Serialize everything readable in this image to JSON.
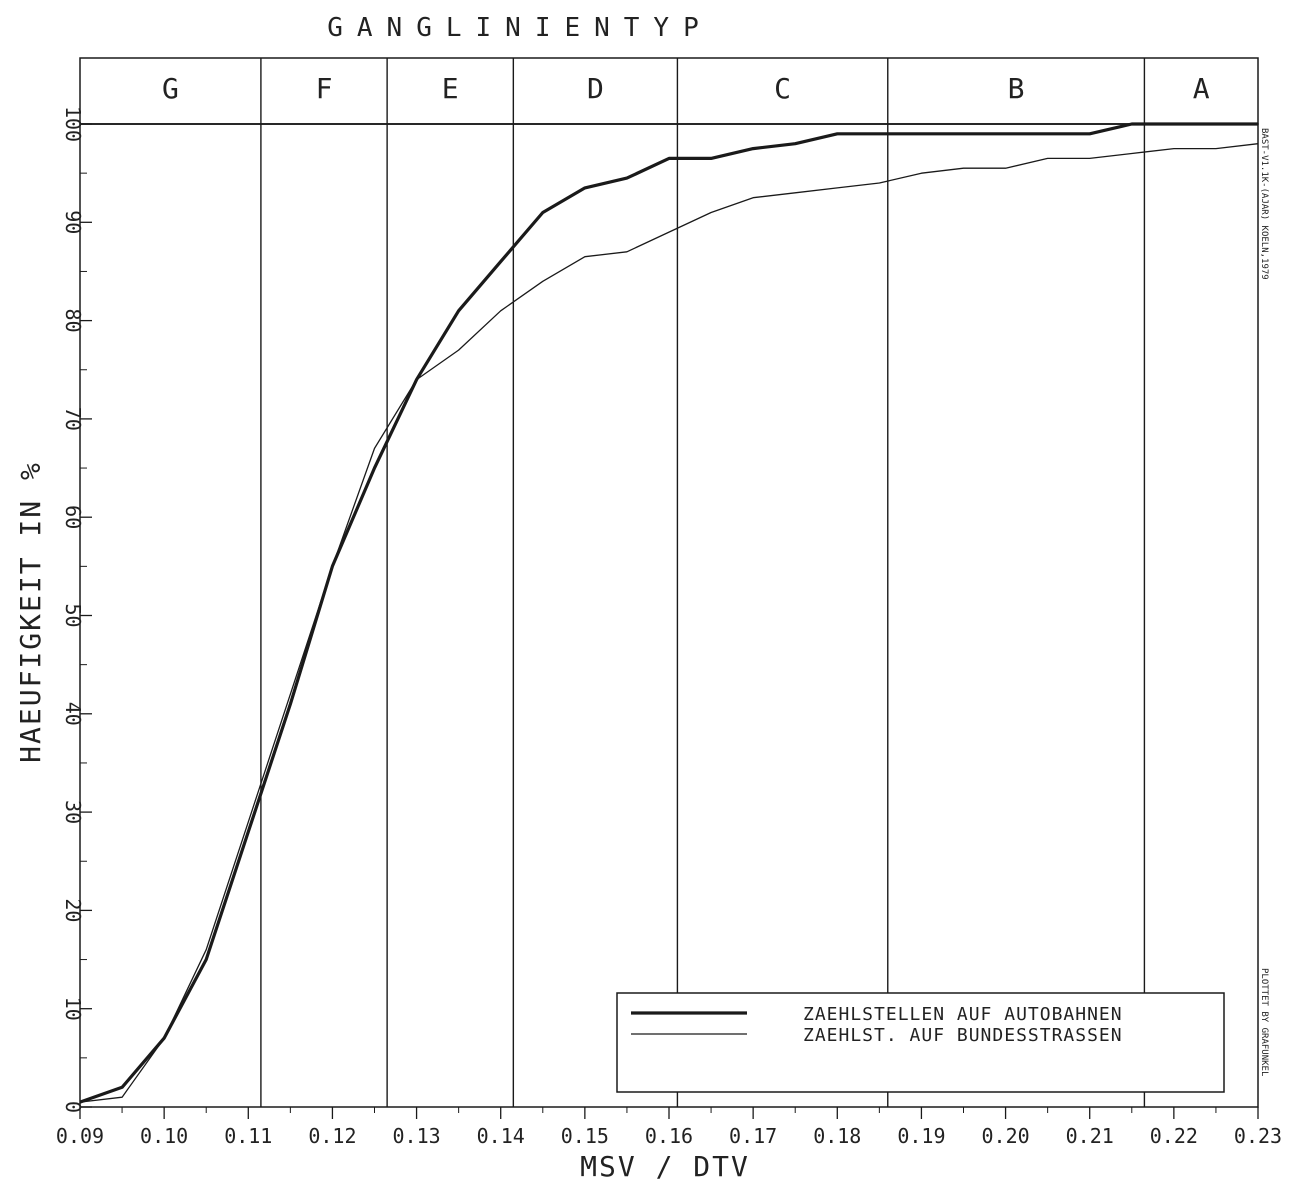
{
  "chart_data": {
    "type": "line",
    "title": "GANGLINIENTYP",
    "xlabel": "MSV / DTV",
    "ylabel": "HAEUFIGKEIT IN %",
    "xlim": [
      0.09,
      0.23
    ],
    "ylim": [
      0,
      100
    ],
    "x_tick_labels": [
      "0.09",
      "0.10",
      "0.11",
      "0.12",
      "0.13",
      "0.14",
      "0.15",
      "0.16",
      "0.17",
      "0.18",
      "0.19",
      "0.20",
      "0.21",
      "0.22",
      "0.23"
    ],
    "y_tick_labels": [
      "0",
      "10",
      "20",
      "30",
      "40",
      "50",
      "60",
      "70",
      "80",
      "90",
      "100"
    ],
    "y_ticks": [
      0,
      10,
      20,
      30,
      40,
      50,
      60,
      70,
      80,
      90,
      100
    ],
    "bands": [
      {
        "label": "G",
        "from": 0.09,
        "to": 0.1115
      },
      {
        "label": "F",
        "from": 0.1115,
        "to": 0.1265
      },
      {
        "label": "E",
        "from": 0.1265,
        "to": 0.1415
      },
      {
        "label": "D",
        "from": 0.1415,
        "to": 0.161
      },
      {
        "label": "C",
        "from": 0.161,
        "to": 0.186
      },
      {
        "label": "B",
        "from": 0.186,
        "to": 0.2165
      },
      {
        "label": "A",
        "from": 0.2165,
        "to": 0.23
      }
    ],
    "series": [
      {
        "name": "ZAEHLSTELLEN AUF AUTOBAHNEN",
        "style": "thick",
        "x": [
          0.09,
          0.095,
          0.1,
          0.105,
          0.11,
          0.115,
          0.12,
          0.125,
          0.13,
          0.135,
          0.14,
          0.145,
          0.15,
          0.155,
          0.16,
          0.165,
          0.17,
          0.175,
          0.18,
          0.185,
          0.19,
          0.195,
          0.2,
          0.205,
          0.21,
          0.215,
          0.22,
          0.225,
          0.23
        ],
        "y": [
          0.5,
          2,
          7,
          15,
          28,
          41,
          55,
          65,
          74,
          81,
          86,
          91,
          93.5,
          94.5,
          96.5,
          96.5,
          97.5,
          98,
          99,
          99,
          99,
          99,
          99,
          99,
          99,
          100,
          100,
          100,
          100
        ]
      },
      {
        "name": "ZAEHLST. AUF BUNDESSTRASSEN",
        "style": "thin",
        "x": [
          0.09,
          0.095,
          0.1,
          0.105,
          0.11,
          0.115,
          0.12,
          0.125,
          0.13,
          0.135,
          0.14,
          0.145,
          0.15,
          0.155,
          0.16,
          0.165,
          0.17,
          0.175,
          0.18,
          0.185,
          0.19,
          0.195,
          0.2,
          0.205,
          0.21,
          0.215,
          0.22,
          0.225,
          0.23
        ],
        "y": [
          0.5,
          1,
          7,
          16,
          29,
          42,
          55,
          67,
          74,
          77,
          81,
          84,
          86.5,
          87,
          89,
          91,
          92.5,
          93,
          93.5,
          94,
          95,
          95.5,
          95.5,
          96.5,
          96.5,
          97,
          97.5,
          97.5,
          98
        ]
      }
    ],
    "legend": {
      "placement": "bottom-right",
      "items": [
        {
          "label": "ZAEHLSTELLEN AUF AUTOBAHNEN",
          "style": "thick"
        },
        {
          "label": "ZAEHLST. AUF BUNDESSTRASSEN",
          "style": "thin"
        }
      ]
    },
    "side_notes": [
      "BAST-V1.1K-(AJAR) KOELN,1979",
      "PLOTTET BY GRAFUNKEL"
    ],
    "line_color": "#1a1a1a",
    "grid": false
  }
}
